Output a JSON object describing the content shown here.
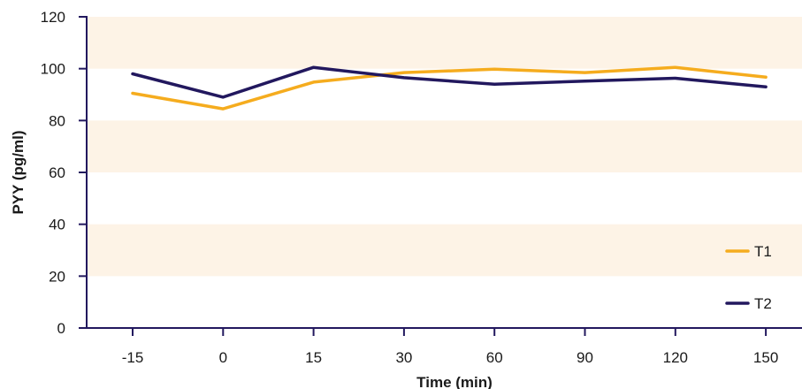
{
  "chart_data": {
    "type": "line",
    "title": "",
    "xlabel": "Time (min)",
    "ylabel": "PYY (pg/ml)",
    "categories": [
      "-15",
      "0",
      "15",
      "30",
      "60",
      "90",
      "120",
      "150"
    ],
    "ylim": [
      0,
      120
    ],
    "yticks": [
      0,
      20,
      40,
      60,
      80,
      100,
      120
    ],
    "yticks_labels": [
      "0",
      "20",
      "40",
      "60",
      "80",
      "100",
      "120"
    ],
    "grid": false,
    "band_color": "#fdf3e6",
    "legend_position": "bottom-right",
    "series": [
      {
        "name": "T1",
        "color": "#f5ac1e",
        "values": [
          90.5,
          84.5,
          94.8,
          98.5,
          99.8,
          98.5,
          100.5,
          96.7
        ]
      },
      {
        "name": "T2",
        "color": "#22185e",
        "values": [
          98.0,
          89.0,
          100.5,
          96.5,
          94.0,
          95.2,
          96.3,
          93.0
        ]
      }
    ]
  }
}
